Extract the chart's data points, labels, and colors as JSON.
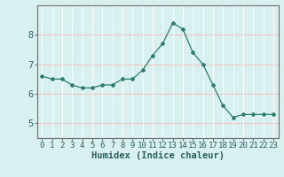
{
  "x": [
    0,
    1,
    2,
    3,
    4,
    5,
    6,
    7,
    8,
    9,
    10,
    11,
    12,
    13,
    14,
    15,
    16,
    17,
    18,
    19,
    20,
    21,
    22,
    23
  ],
  "y": [
    6.6,
    6.5,
    6.5,
    6.3,
    6.2,
    6.2,
    6.3,
    6.3,
    6.5,
    6.5,
    6.8,
    7.3,
    7.7,
    8.4,
    8.2,
    7.4,
    7.0,
    6.3,
    5.6,
    5.2,
    5.3,
    5.3,
    5.3,
    5.3
  ],
  "line_color": "#2e7d6e",
  "marker": "D",
  "marker_size": 2.0,
  "bg_color": "#d8f0f0",
  "grid_color_h": "#f0c0c0",
  "grid_color_v": "#ffffff",
  "axis_color": "#707070",
  "xlabel": "Humidex (Indice chaleur)",
  "xlabel_fontsize": 7.5,
  "tick_fontsize": 6.5,
  "ytick_fontsize": 7.5,
  "xlim": [
    -0.5,
    23.5
  ],
  "ylim": [
    4.5,
    9.0
  ],
  "yticks": [
    5,
    6,
    7,
    8
  ],
  "xticks": [
    0,
    1,
    2,
    3,
    4,
    5,
    6,
    7,
    8,
    9,
    10,
    11,
    12,
    13,
    14,
    15,
    16,
    17,
    18,
    19,
    20,
    21,
    22,
    23
  ]
}
